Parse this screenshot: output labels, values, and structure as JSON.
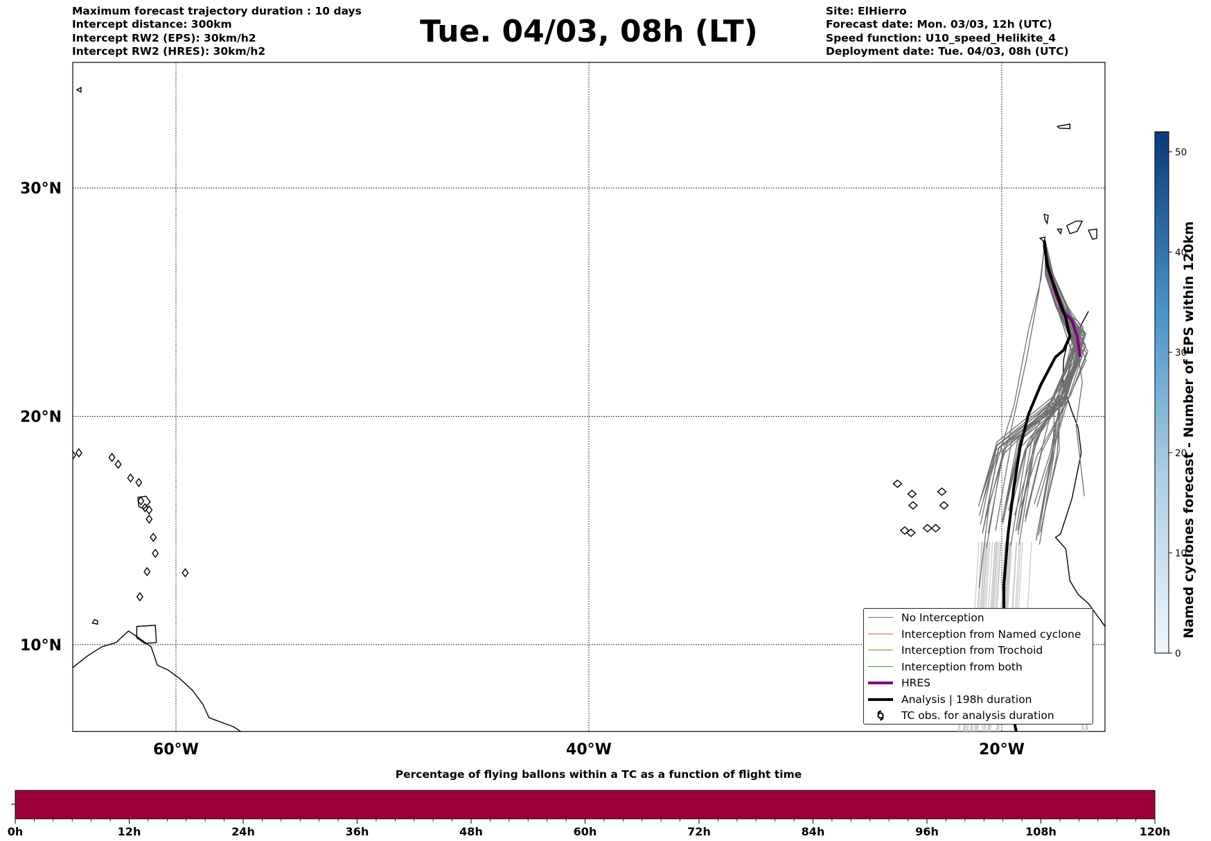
{
  "header": {
    "left_lines": [
      "Maximum forecast trajectory duration : 10 days",
      "Intercept distance: 300km",
      "Intercept RW2 (EPS):  30km/h2",
      "Intercept RW2 (HRES): 30km/h2"
    ],
    "title": "Tue. 04/03, 08h (LT)",
    "right_lines": [
      "Site: ElHierro",
      "Forecast date: Mon. 03/03, 12h (UTC)",
      "Speed function: U10_speed_Helikite_4",
      "Deployment date: Tue. 04/03, 08h (UTC)"
    ]
  },
  "map": {
    "extent": {
      "lon_min": -65,
      "lon_max": -15,
      "lat_min": 6.2,
      "lat_max": 35.5
    },
    "lat_ticks": [
      {
        "value": 30,
        "label": "30°N"
      },
      {
        "value": 20,
        "label": "20°N"
      },
      {
        "value": 10,
        "label": "10°N"
      }
    ],
    "lon_ticks": [
      {
        "value": -60,
        "label": "60°W"
      },
      {
        "value": -40,
        "label": "40°W"
      },
      {
        "value": -20,
        "label": "20°W"
      }
    ],
    "gridlines": "dotted",
    "colors": {
      "no_interception": "#707070",
      "no_interception_late": "#c8c8c8",
      "named_cyclone": "#e8562a",
      "trochoid": "#8b8b1a",
      "both": "#2ca02c",
      "hres": "#800080",
      "analysis": "#000000"
    }
  },
  "legend": {
    "placement": "lower-right",
    "items": [
      {
        "label": "No Interception",
        "style": "thin-gray"
      },
      {
        "label": "Interception from Named cyclone",
        "style": "thin-orange"
      },
      {
        "label": "Interception from Trochoid",
        "style": "thin-olive"
      },
      {
        "label": "Interception from both",
        "style": "thin-green"
      },
      {
        "label": "HRES",
        "style": "thick-purple"
      },
      {
        "label": "Analysis | 198h duration",
        "style": "thick-black"
      },
      {
        "label": "TC obs. for analysis duration",
        "style": "cyclone-symbol"
      }
    ]
  },
  "colorbar": {
    "title": "Named cyclones forecast - Number of EPS within 120km",
    "min": 0,
    "max": 52,
    "ticks": [
      {
        "value": 0,
        "label": "0"
      },
      {
        "value": 10,
        "label": "10"
      },
      {
        "value": 20,
        "label": "20"
      },
      {
        "value": 30,
        "label": "30"
      },
      {
        "value": 40,
        "label": "40"
      },
      {
        "value": 50,
        "label": "50"
      }
    ],
    "color_low": "#f0f6fd",
    "color_high": "#0a3a7a"
  },
  "flight_time_bar": {
    "title": "Percentage of flying ballons within a TC as a function of flight time",
    "fill_color": "#9b003a",
    "ticks": [
      "0h",
      "12h",
      "24h",
      "36h",
      "48h",
      "60h",
      "72h",
      "84h",
      "96h",
      "108h",
      "120h"
    ]
  }
}
